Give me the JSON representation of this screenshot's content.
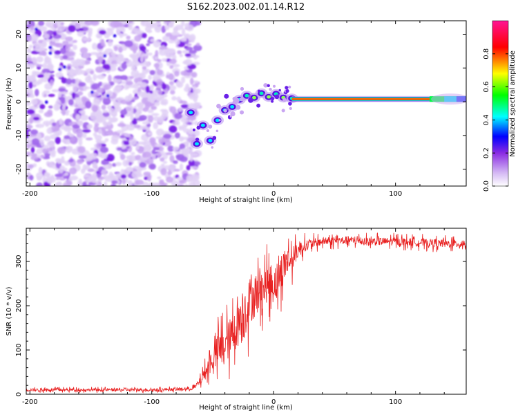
{
  "figure": {
    "title": "S162.2023.002.01.14.R12"
  },
  "chart_data": [
    {
      "type": "heatmap",
      "panel": "top",
      "xlabel": "Height of straight line (km)",
      "ylabel": "Frequency (Hz)",
      "xlim": [
        -203,
        158
      ],
      "ylim": [
        -25,
        24
      ],
      "xticks": [
        -200,
        -100,
        0,
        100
      ],
      "yticks": [
        -20,
        -10,
        0,
        10,
        20
      ],
      "colorbar": {
        "label": "Normalized spectral amplitude",
        "range": [
          0.0,
          1.0
        ],
        "ticks": [
          0.0,
          0.2,
          0.4,
          0.6,
          0.8
        ],
        "colormap": "rainbow",
        "colors": [
          "#ffffff",
          "#8a2be2",
          "#0000ff",
          "#00ffff",
          "#00ff00",
          "#ffff00",
          "#ff0000",
          "#ff1493"
        ]
      },
      "noise_region": {
        "x": [
          -203,
          -68
        ],
        "y": [
          -25,
          24
        ],
        "amplitude": 0.2
      },
      "transition_track": [
        {
          "x": -68,
          "y": -3.2
        },
        {
          "x": -63,
          "y": -12.5
        },
        {
          "x": -58,
          "y": -7
        },
        {
          "x": -52,
          "y": -11.5
        },
        {
          "x": -46,
          "y": -5.5
        },
        {
          "x": -40,
          "y": -2.5
        },
        {
          "x": -34,
          "y": -1.5
        },
        {
          "x": -28,
          "y": 0.6
        },
        {
          "x": -22,
          "y": 1.8
        },
        {
          "x": -16,
          "y": 1.2
        },
        {
          "x": -10,
          "y": 2.5
        },
        {
          "x": -4,
          "y": 1.4
        },
        {
          "x": 2,
          "y": 2.3
        },
        {
          "x": 8,
          "y": 1.2
        },
        {
          "x": 15,
          "y": 1.0
        }
      ],
      "tone": {
        "x_start": 15,
        "x_end": 158,
        "frequency_hz": 0.8,
        "peak_amplitude": 0.98
      }
    },
    {
      "type": "line",
      "panel": "bottom",
      "xlabel": "Height of straight line (km)",
      "ylabel": "SNR (10 * v/v)",
      "xlim": [
        -203,
        158
      ],
      "ylim": [
        0,
        375
      ],
      "xticks": [
        -200,
        -100,
        0,
        100
      ],
      "yticks": [
        0,
        100,
        200,
        300
      ],
      "series": [
        {
          "color": "#e82020",
          "x": [
            -203,
            -180,
            -160,
            -140,
            -120,
            -100,
            -80,
            -70,
            -65,
            -60,
            -55,
            -50,
            -45,
            -40,
            -35,
            -30,
            -25,
            -20,
            -15,
            -10,
            -5,
            0,
            5,
            10,
            15,
            20,
            25,
            30,
            40,
            60,
            80,
            100,
            120,
            140,
            158
          ],
          "values": [
            10,
            10,
            10,
            10,
            10,
            10,
            11,
            12,
            15,
            30,
            55,
            80,
            100,
            110,
            130,
            155,
            175,
            210,
            225,
            235,
            250,
            250,
            265,
            300,
            305,
            325,
            335,
            340,
            345,
            348,
            345,
            345,
            343,
            340,
            340
          ],
          "noise_amplitude": [
            7,
            7,
            7,
            7,
            7,
            7,
            7,
            8,
            10,
            20,
            40,
            60,
            90,
            95,
            100,
            110,
            130,
            120,
            110,
            100,
            90,
            100,
            90,
            80,
            60,
            40,
            30,
            25,
            20,
            20,
            20,
            20,
            20,
            20,
            20
          ]
        }
      ]
    }
  ]
}
